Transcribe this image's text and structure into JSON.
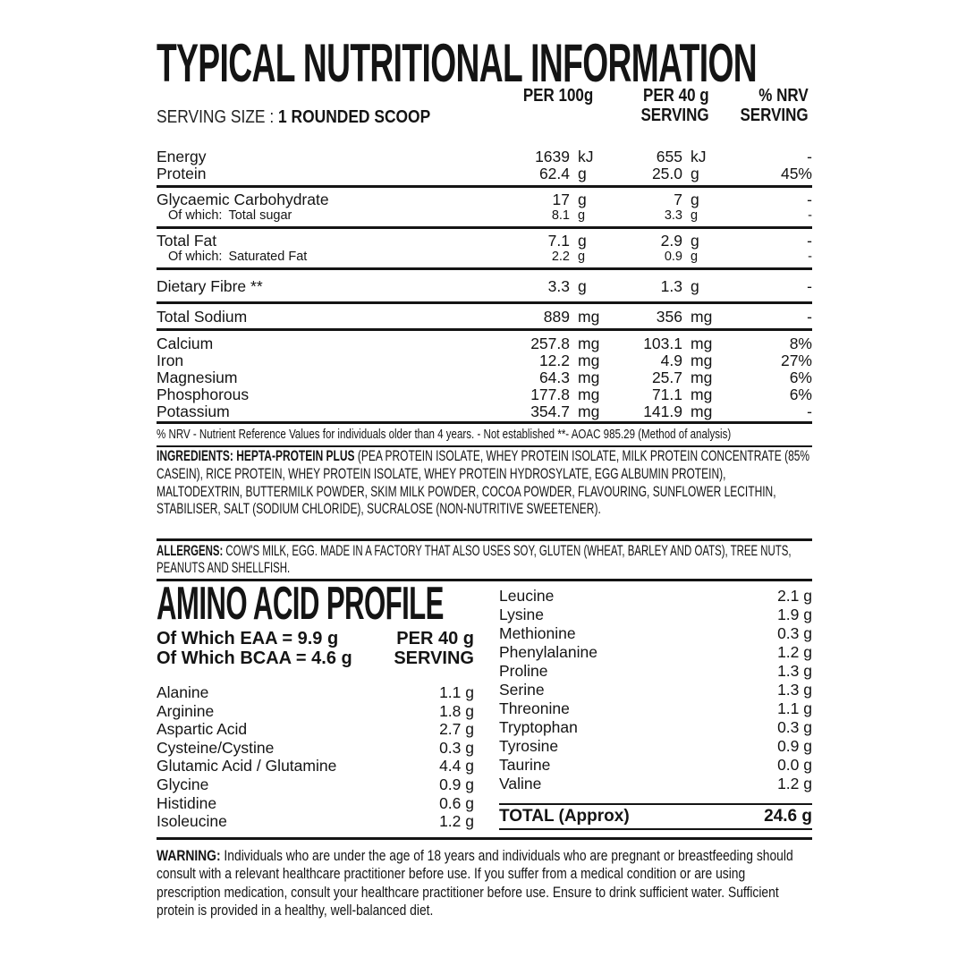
{
  "colors": {
    "text": "#141414",
    "background": "#ffffff"
  },
  "header": {
    "title": "TYPICAL NUTRITIONAL INFORMATION",
    "serving_size_label": "SERVING SIZE :",
    "serving_size_value": "1 ROUNDED SCOOP",
    "col_per100": "PER 100g",
    "col_per40_line1": "PER 40 g",
    "col_per40_line2": "SERVING",
    "col_nrv_line1": "% NRV",
    "col_nrv_line2": "SERVING"
  },
  "nutrition": {
    "groups": [
      {
        "rows": [
          {
            "name": "Energy",
            "v100": "1639",
            "u100": "kJ",
            "v40": "655",
            "u40": "kJ",
            "nrv": "-"
          },
          {
            "name": "Protein",
            "v100": "62.4",
            "u100": "g",
            "v40": "25.0",
            "u40": "g",
            "nrv": "45%"
          }
        ]
      },
      {
        "rows": [
          {
            "name": "Glycaemic Carbohydrate",
            "v100": "17",
            "u100": "g",
            "v40": "7",
            "u40": "g",
            "nrv": "-"
          },
          {
            "prefix": "Of which:",
            "name": "Total sugar",
            "v100": "8.1",
            "u100": "g",
            "v40": "3.3",
            "u40": "g",
            "nrv": "-"
          }
        ]
      },
      {
        "rows": [
          {
            "name": "Total Fat",
            "v100": "7.1",
            "u100": "g",
            "v40": "2.9",
            "u40": "g",
            "nrv": "-"
          },
          {
            "prefix": "Of which:",
            "name": "Saturated Fat",
            "v100": "2.2",
            "u100": "g",
            "v40": "0.9",
            "u40": "g",
            "nrv": "-"
          }
        ]
      },
      {
        "rows": [
          {
            "name": "Dietary Fibre **",
            "v100": "3.3",
            "u100": "g",
            "v40": "1.3",
            "u40": "g",
            "nrv": "-"
          }
        ]
      },
      {
        "rows": [
          {
            "name": "Total Sodium",
            "v100": "889",
            "u100": "mg",
            "v40": "356",
            "u40": "mg",
            "nrv": "-"
          }
        ]
      },
      {
        "rows": [
          {
            "name": "Calcium",
            "v100": "257.8",
            "u100": "mg",
            "v40": "103.1",
            "u40": "mg",
            "nrv": "8%"
          },
          {
            "name": "Iron",
            "v100": "12.2",
            "u100": "mg",
            "v40": "4.9",
            "u40": "mg",
            "nrv": "27%"
          },
          {
            "name": "Magnesium",
            "v100": "64.3",
            "u100": "mg",
            "v40": "25.7",
            "u40": "mg",
            "nrv": "6%"
          },
          {
            "name": "Phosphorous",
            "v100": "177.8",
            "u100": "mg",
            "v40": "71.1",
            "u40": "mg",
            "nrv": "6%"
          },
          {
            "name": "Potassium",
            "v100": "354.7",
            "u100": "mg",
            "v40": "141.9",
            "u40": "mg",
            "nrv": "-"
          }
        ]
      }
    ],
    "footnote": "% NRV - Nutrient Reference Values for individuals older than 4 years. - Not established **- AOAC 985.29 (Method of analysis)"
  },
  "ingredients": {
    "label": "INGREDIENTS: HEPTA-PROTEIN PLUS",
    "text": " (PEA PROTEIN ISOLATE, WHEY PROTEIN ISOLATE, MILK PROTEIN CONCENTRATE (85% CASEIN), RICE PROTEIN, WHEY PROTEIN ISOLATE, WHEY PROTEIN HYDROSYLATE, EGG ALBUMIN PROTEIN), MALTODEXTRIN, BUTTERMILK POWDER, SKIM MILK POWDER, COCOA POWDER, FLAVOURING, SUNFLOWER LECITHIN, STABILISER, SALT (SODIUM CHLORIDE), SUCRALOSE (NON-NUTRITIVE SWEETENER)."
  },
  "allergens": {
    "label": "ALLERGENS:",
    "text": " COW'S MILK, EGG. MADE IN A FACTORY THAT ALSO USES SOY, GLUTEN (WHEAT, BARLEY AND OATS), TREE NUTS, PEANUTS AND SHELLFISH."
  },
  "amino_profile": {
    "title": "AMINO ACID PROFILE",
    "eaa": "Of Which EAA = 9.9 g",
    "bcaa": "Of Which BCAA = 4.6 g",
    "col_header_line1": "PER 40 g",
    "col_header_line2": "SERVING",
    "left": [
      {
        "n": "Alanine",
        "v": "1.1 g"
      },
      {
        "n": "Arginine",
        "v": "1.8 g"
      },
      {
        "n": "Aspartic Acid",
        "v": "2.7 g"
      },
      {
        "n": "Cysteine/Cystine",
        "v": "0.3 g"
      },
      {
        "n": "Glutamic Acid / Glutamine",
        "v": "4.4 g"
      },
      {
        "n": "Glycine",
        "v": "0.9 g"
      },
      {
        "n": "Histidine",
        "v": "0.6 g"
      },
      {
        "n": "Isoleucine",
        "v": "1.2 g"
      }
    ],
    "right": [
      {
        "n": "Leucine",
        "v": "2.1 g"
      },
      {
        "n": "Lysine",
        "v": "1.9 g"
      },
      {
        "n": "Methionine",
        "v": "0.3 g"
      },
      {
        "n": "Phenylalanine",
        "v": "1.2 g"
      },
      {
        "n": "Proline",
        "v": "1.3 g"
      },
      {
        "n": "Serine",
        "v": "1.3 g"
      },
      {
        "n": "Threonine",
        "v": "1.1 g"
      },
      {
        "n": "Tryptophan",
        "v": "0.3 g"
      },
      {
        "n": "Tyrosine",
        "v": "0.9 g"
      },
      {
        "n": "Taurine",
        "v": "0.0 g"
      },
      {
        "n": "Valine",
        "v": "1.2 g"
      }
    ],
    "total_label": "TOTAL (Approx)",
    "total_value": "24.6 g"
  },
  "warning": {
    "label": "WARNING:",
    "text": " Individuals who are under the age of 18 years and individuals who are pregnant or breastfeeding should consult with a relevant healthcare practitioner before use. If you suffer from a medical condition or are using prescription medication, consult your healthcare practitioner before use. Ensure to drink sufficient water. Sufficient protein is provided in a healthy, well-balanced diet."
  }
}
